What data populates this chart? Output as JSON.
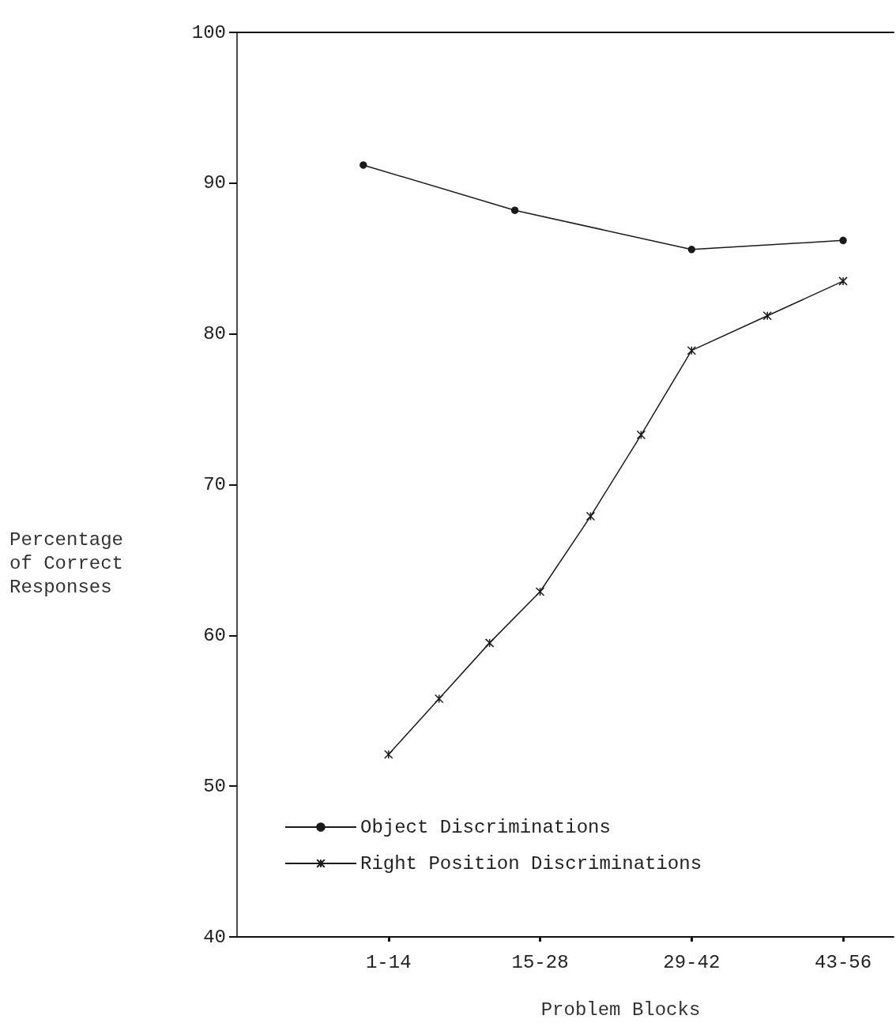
{
  "chart_data": {
    "type": "line",
    "xlabel": "Problem Blocks",
    "ylabel": "Percentage\nof Correct\nResponses",
    "categories": [
      null,
      null,
      null,
      null,
      null,
      null,
      "1-14",
      null,
      null,
      null,
      null,
      null,
      "15-28",
      null,
      null,
      null,
      null,
      null,
      "29-42",
      null,
      null,
      null,
      null,
      null,
      "43-56",
      null,
      null
    ],
    "ylim": [
      40,
      100
    ],
    "yticks": [
      40,
      50,
      60,
      70,
      80,
      90,
      100
    ],
    "series": [
      {
        "name": "Object Discriminations",
        "color": "#1a1a1a",
        "marker": "circle",
        "values": [
          null,
          null,
          null,
          null,
          null,
          91.2,
          null,
          null,
          null,
          null,
          null,
          88.2,
          null,
          null,
          null,
          null,
          null,
          null,
          85.6,
          null,
          null,
          null,
          null,
          null,
          86.2,
          null,
          null
        ]
      },
      {
        "name": "Right Position Discriminations",
        "color": "#1a1a1a",
        "marker": "cross",
        "values": [
          null,
          null,
          null,
          null,
          null,
          null,
          52.1,
          null,
          55.8,
          null,
          59.5,
          null,
          62.9,
          null,
          67.9,
          null,
          73.3,
          null,
          78.9,
          null,
          null,
          81.2,
          null,
          null,
          83.5,
          null,
          null
        ]
      }
    ],
    "grid": false,
    "legend": "bottom"
  }
}
